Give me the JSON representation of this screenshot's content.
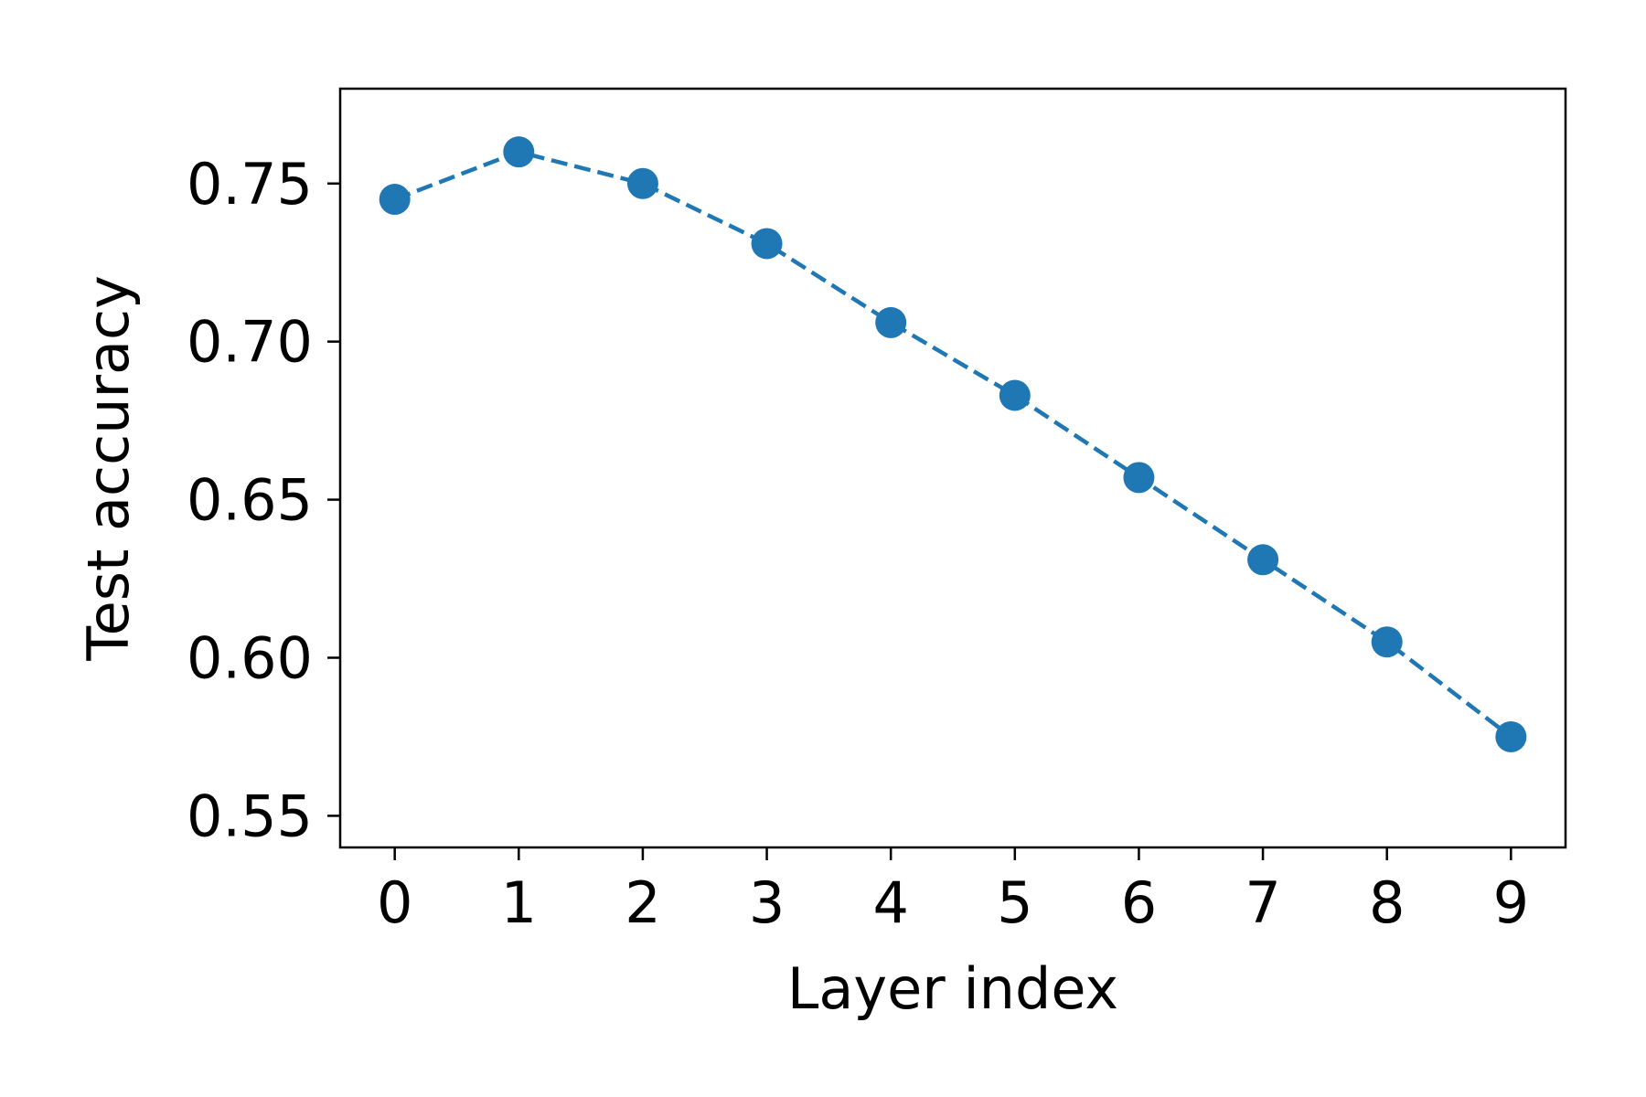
{
  "chart_data": {
    "type": "line",
    "title": "",
    "xlabel": "Layer index",
    "ylabel": "Test accuracy",
    "x": [
      0,
      1,
      2,
      3,
      4,
      5,
      6,
      7,
      8,
      9
    ],
    "xticks": [
      "0",
      "1",
      "2",
      "3",
      "4",
      "5",
      "6",
      "7",
      "8",
      "9"
    ],
    "yticks": [
      "0.55",
      "0.60",
      "0.65",
      "0.70",
      "0.75"
    ],
    "xlim": [
      -0.44,
      9.44
    ],
    "ylim": [
      0.54,
      0.78
    ],
    "grid": false,
    "legend": "none",
    "series": [
      {
        "values": [
          0.745,
          0.76,
          0.75,
          0.731,
          0.706,
          0.683,
          0.657,
          0.631,
          0.605,
          0.575
        ],
        "color": "#1f77b4",
        "line_style": "dashed",
        "marker": "circle"
      }
    ]
  }
}
